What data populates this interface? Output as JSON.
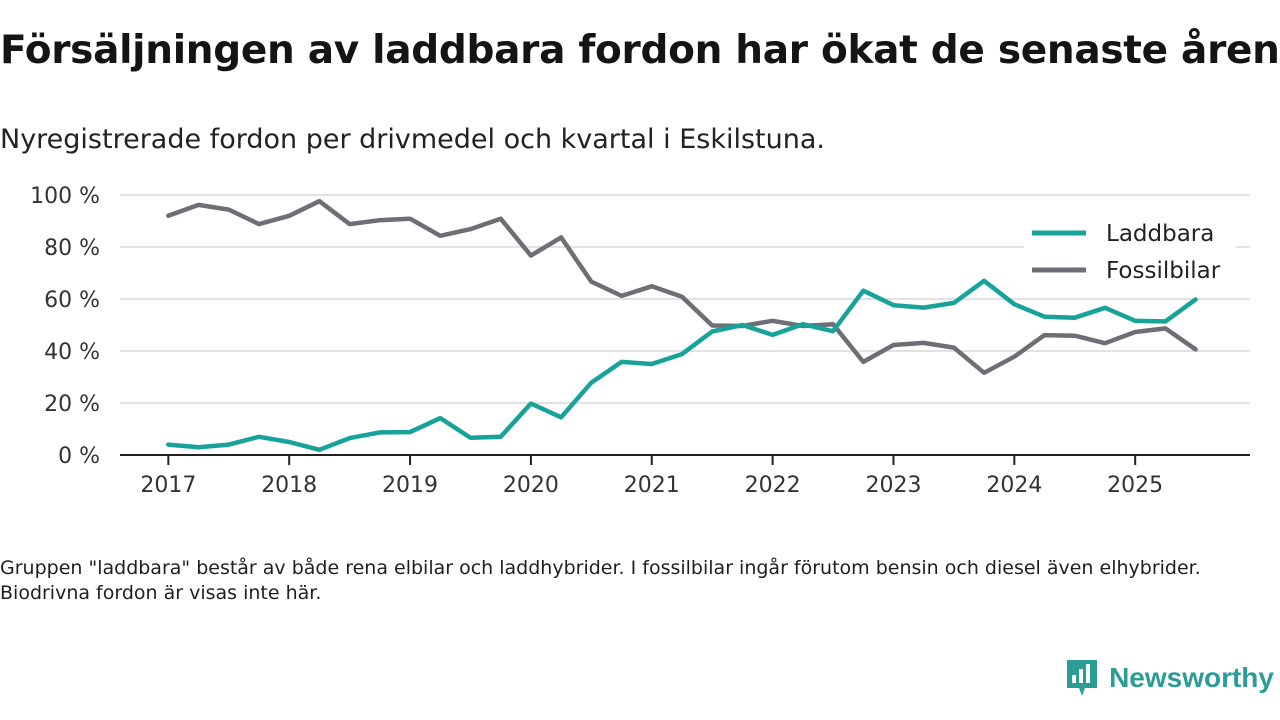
{
  "header": {
    "title": "Försäljningen av laddbara fordon har ökat de senaste åren",
    "subtitle": "Nyregistrerade fordon per drivmedel och kvartal i Eskilstuna."
  },
  "footnote": "Gruppen \"laddbara\" består av både rena elbilar och laddhybrider. I fossilbilar ingår förutom bensin och diesel även elhybrider. Biodrivna fordon är visas inte här.",
  "brand": {
    "name": "Newsworthy"
  },
  "colors": {
    "laddbara": "#17a39a",
    "fossil": "#6e6e76",
    "grid": "#d9d9d9",
    "axis": "#222222",
    "brand": "#2a9d95"
  },
  "chart_data": {
    "type": "line",
    "title": "Försäljningen av laddbara fordon har ökat de senaste åren",
    "xlabel": "",
    "ylabel": "",
    "ylim": [
      0,
      100
    ],
    "y_ticks": [
      0,
      20,
      40,
      60,
      80,
      100
    ],
    "y_tick_labels": [
      "0 %",
      "20 %",
      "40 %",
      "60 %",
      "80 %",
      "100 %"
    ],
    "x_ticks": [
      2017,
      2018,
      2019,
      2020,
      2021,
      2022,
      2023,
      2024,
      2025
    ],
    "x_tick_labels": [
      "2017",
      "2018",
      "2019",
      "2020",
      "2021",
      "2022",
      "2023",
      "2024",
      "2025"
    ],
    "xlim": [
      2016.6,
      2025.95
    ],
    "grid": true,
    "legend_position": "top-right",
    "x": [
      2017.0,
      2017.25,
      2017.5,
      2017.75,
      2018.0,
      2018.25,
      2018.5,
      2018.75,
      2019.0,
      2019.25,
      2019.5,
      2019.75,
      2020.0,
      2020.25,
      2020.5,
      2020.75,
      2021.0,
      2021.25,
      2021.5,
      2021.75,
      2022.0,
      2022.25,
      2022.5,
      2022.75,
      2023.0,
      2023.25,
      2023.5,
      2023.75,
      2024.0,
      2024.25,
      2024.5,
      2024.75,
      2025.0,
      2025.25,
      2025.5
    ],
    "series": [
      {
        "name": "Laddbara",
        "key": "laddbara",
        "values": [
          4,
          3,
          4,
          7,
          5,
          2,
          6.5,
          8.7,
          8.8,
          14.2,
          6.6,
          7,
          19.8,
          14.5,
          27.8,
          35.8,
          35,
          38.8,
          47.5,
          50,
          46.2,
          50.3,
          47.6,
          63.2,
          57.6,
          56.7,
          58.5,
          67,
          58,
          53.2,
          52.8,
          56.6,
          51.6,
          51.4,
          59.8
        ]
      },
      {
        "name": "Fossilbilar",
        "key": "fossil",
        "values": [
          92,
          96.2,
          94.4,
          88.8,
          92,
          97.6,
          88.8,
          90.3,
          90.9,
          84.3,
          86.9,
          90.9,
          76.7,
          83.7,
          66.7,
          61.2,
          64.9,
          60.9,
          49.8,
          49.6,
          51.6,
          49.6,
          50.3,
          35.8,
          42.3,
          43.1,
          41.3,
          31.6,
          37.8,
          46.1,
          45.9,
          43,
          47.3,
          48.7,
          40.6
        ]
      }
    ]
  }
}
